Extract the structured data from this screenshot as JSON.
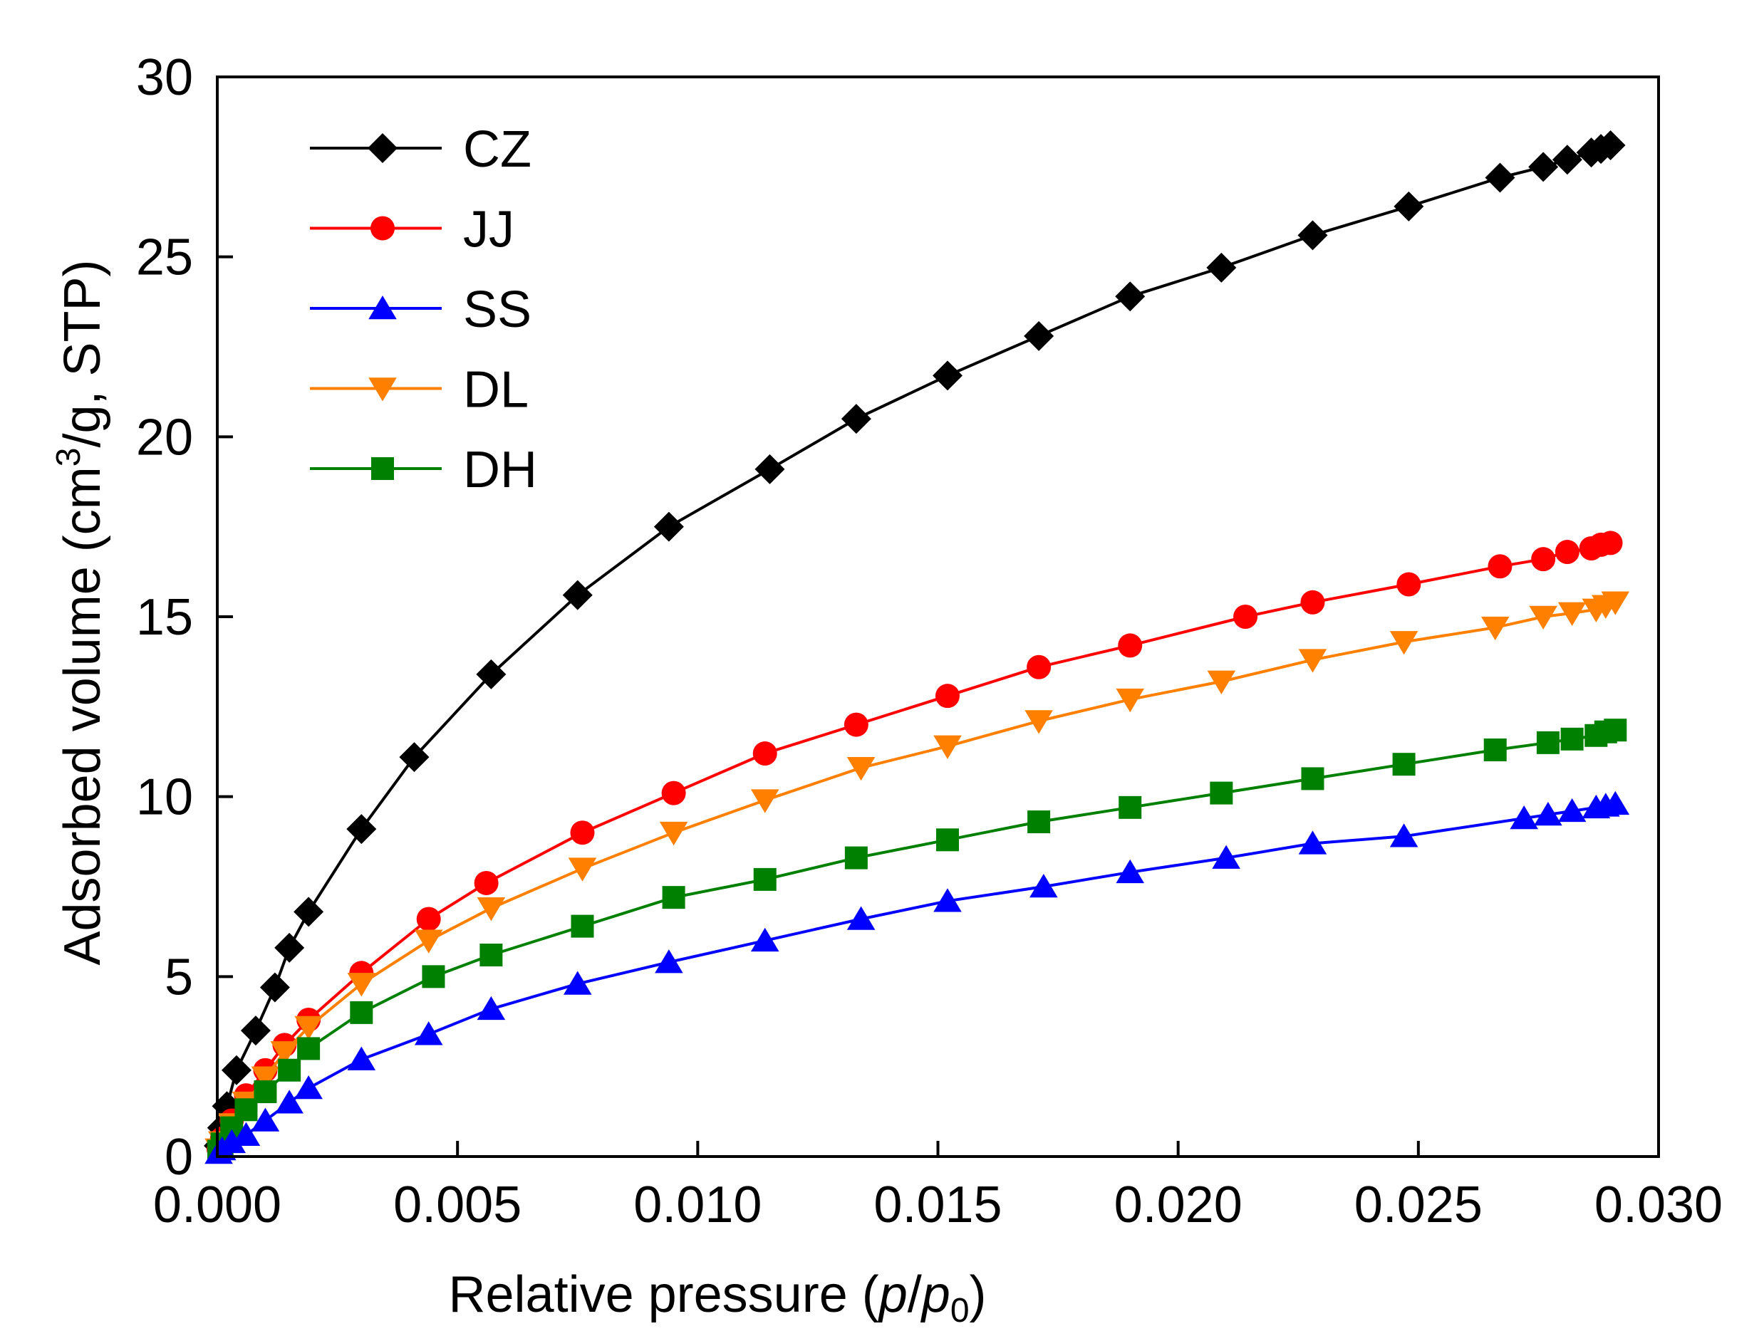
{
  "chart_data": {
    "type": "line",
    "title": "",
    "xlabel": "Relative pressure (",
    "xlabel_italic": "p",
    "xlabel_slash": "/",
    "xlabel_italic2": "p",
    "xlabel_sub": "0",
    "xlabel_end": ")",
    "ylabel": "Adsorbed volume (cm",
    "ylabel_sup": "3",
    "ylabel_end": "/g, STP)",
    "xlim": [
      0.0,
      0.03
    ],
    "ylim": [
      0,
      30
    ],
    "xticks": [
      0.0,
      0.005,
      0.01,
      0.015,
      0.02,
      0.025,
      0.03
    ],
    "xtick_labels": [
      "0.000",
      "0.005",
      "0.010",
      "0.015",
      "0.020",
      "0.025",
      "0.030"
    ],
    "yticks": [
      0,
      5,
      10,
      15,
      20,
      25,
      30
    ],
    "ytick_labels": [
      "0",
      "5",
      "10",
      "15",
      "20",
      "25",
      "30"
    ],
    "legend_position": "top-left",
    "series": [
      {
        "name": "CZ",
        "color": "#000000",
        "marker": "diamond",
        "x": [
          3e-05,
          0.0001,
          0.0002,
          0.0004,
          0.0008,
          0.0012,
          0.0015,
          0.0019,
          0.003,
          0.0041,
          0.0057,
          0.0075,
          0.0094,
          0.0115,
          0.0133,
          0.0152,
          0.0171,
          0.019,
          0.0209,
          0.0228,
          0.0248,
          0.0267,
          0.0276,
          0.0281,
          0.0286,
          0.0288,
          0.029
        ],
        "values": [
          0.3,
          0.8,
          1.4,
          2.4,
          3.5,
          4.7,
          5.8,
          6.8,
          9.1,
          11.1,
          13.4,
          15.6,
          17.5,
          19.1,
          20.5,
          21.7,
          22.8,
          23.9,
          24.7,
          25.6,
          26.4,
          27.2,
          27.5,
          27.7,
          27.9,
          28.0,
          28.1
        ]
      },
      {
        "name": "JJ",
        "color": "#ff0000",
        "marker": "circle",
        "x": [
          3e-05,
          0.0001,
          0.0003,
          0.0006,
          0.001,
          0.0014,
          0.0019,
          0.003,
          0.0044,
          0.0056,
          0.0076,
          0.0095,
          0.0114,
          0.0133,
          0.0152,
          0.0171,
          0.019,
          0.0214,
          0.0228,
          0.0248,
          0.0267,
          0.0276,
          0.0281,
          0.0286,
          0.0288,
          0.029
        ],
        "values": [
          0.2,
          0.5,
          1.0,
          1.7,
          2.4,
          3.1,
          3.8,
          5.1,
          6.6,
          7.6,
          9.0,
          10.1,
          11.2,
          12.0,
          12.8,
          13.6,
          14.2,
          15.0,
          15.4,
          15.9,
          16.4,
          16.6,
          16.8,
          16.9,
          17.0,
          17.05
        ]
      },
      {
        "name": "SS",
        "color": "#0000ff",
        "marker": "triangle-up",
        "x": [
          3e-05,
          0.0001,
          0.0003,
          0.0006,
          0.001,
          0.0015,
          0.0019,
          0.003,
          0.0044,
          0.0057,
          0.0075,
          0.0094,
          0.0114,
          0.0134,
          0.0152,
          0.0172,
          0.019,
          0.021,
          0.0228,
          0.0247,
          0.0272,
          0.0277,
          0.0282,
          0.0287,
          0.0289,
          0.0291
        ],
        "values": [
          0.1,
          0.2,
          0.4,
          0.6,
          1.0,
          1.5,
          1.9,
          2.7,
          3.4,
          4.1,
          4.8,
          5.4,
          6.0,
          6.6,
          7.1,
          7.5,
          7.9,
          8.3,
          8.7,
          8.9,
          9.4,
          9.5,
          9.6,
          9.7,
          9.75,
          9.8
        ]
      },
      {
        "name": "DL",
        "color": "#ff8000",
        "marker": "triangle-down",
        "x": [
          3e-05,
          0.0001,
          0.0003,
          0.0006,
          0.001,
          0.0014,
          0.0019,
          0.003,
          0.0044,
          0.0057,
          0.0076,
          0.0095,
          0.0114,
          0.0134,
          0.0152,
          0.0171,
          0.019,
          0.0209,
          0.0228,
          0.0247,
          0.0266,
          0.0276,
          0.0282,
          0.0287,
          0.0289,
          0.0291
        ],
        "values": [
          0.2,
          0.4,
          0.9,
          1.5,
          2.2,
          2.9,
          3.6,
          4.8,
          6.0,
          6.9,
          8.0,
          9.0,
          9.9,
          10.8,
          11.4,
          12.1,
          12.7,
          13.2,
          13.8,
          14.3,
          14.7,
          15.0,
          15.1,
          15.2,
          15.3,
          15.4
        ]
      },
      {
        "name": "DH",
        "color": "#008000",
        "marker": "square",
        "x": [
          3e-05,
          0.0001,
          0.0003,
          0.0006,
          0.001,
          0.0015,
          0.0019,
          0.003,
          0.0045,
          0.0057,
          0.0076,
          0.0095,
          0.0114,
          0.0133,
          0.0152,
          0.0171,
          0.019,
          0.0209,
          0.0228,
          0.0247,
          0.0266,
          0.0277,
          0.0282,
          0.0287,
          0.0289,
          0.0291
        ],
        "values": [
          0.15,
          0.35,
          0.8,
          1.3,
          1.8,
          2.4,
          3.0,
          4.0,
          5.0,
          5.6,
          6.4,
          7.2,
          7.7,
          8.3,
          8.8,
          9.3,
          9.7,
          10.1,
          10.5,
          10.9,
          11.3,
          11.5,
          11.6,
          11.7,
          11.8,
          11.85
        ]
      }
    ]
  }
}
